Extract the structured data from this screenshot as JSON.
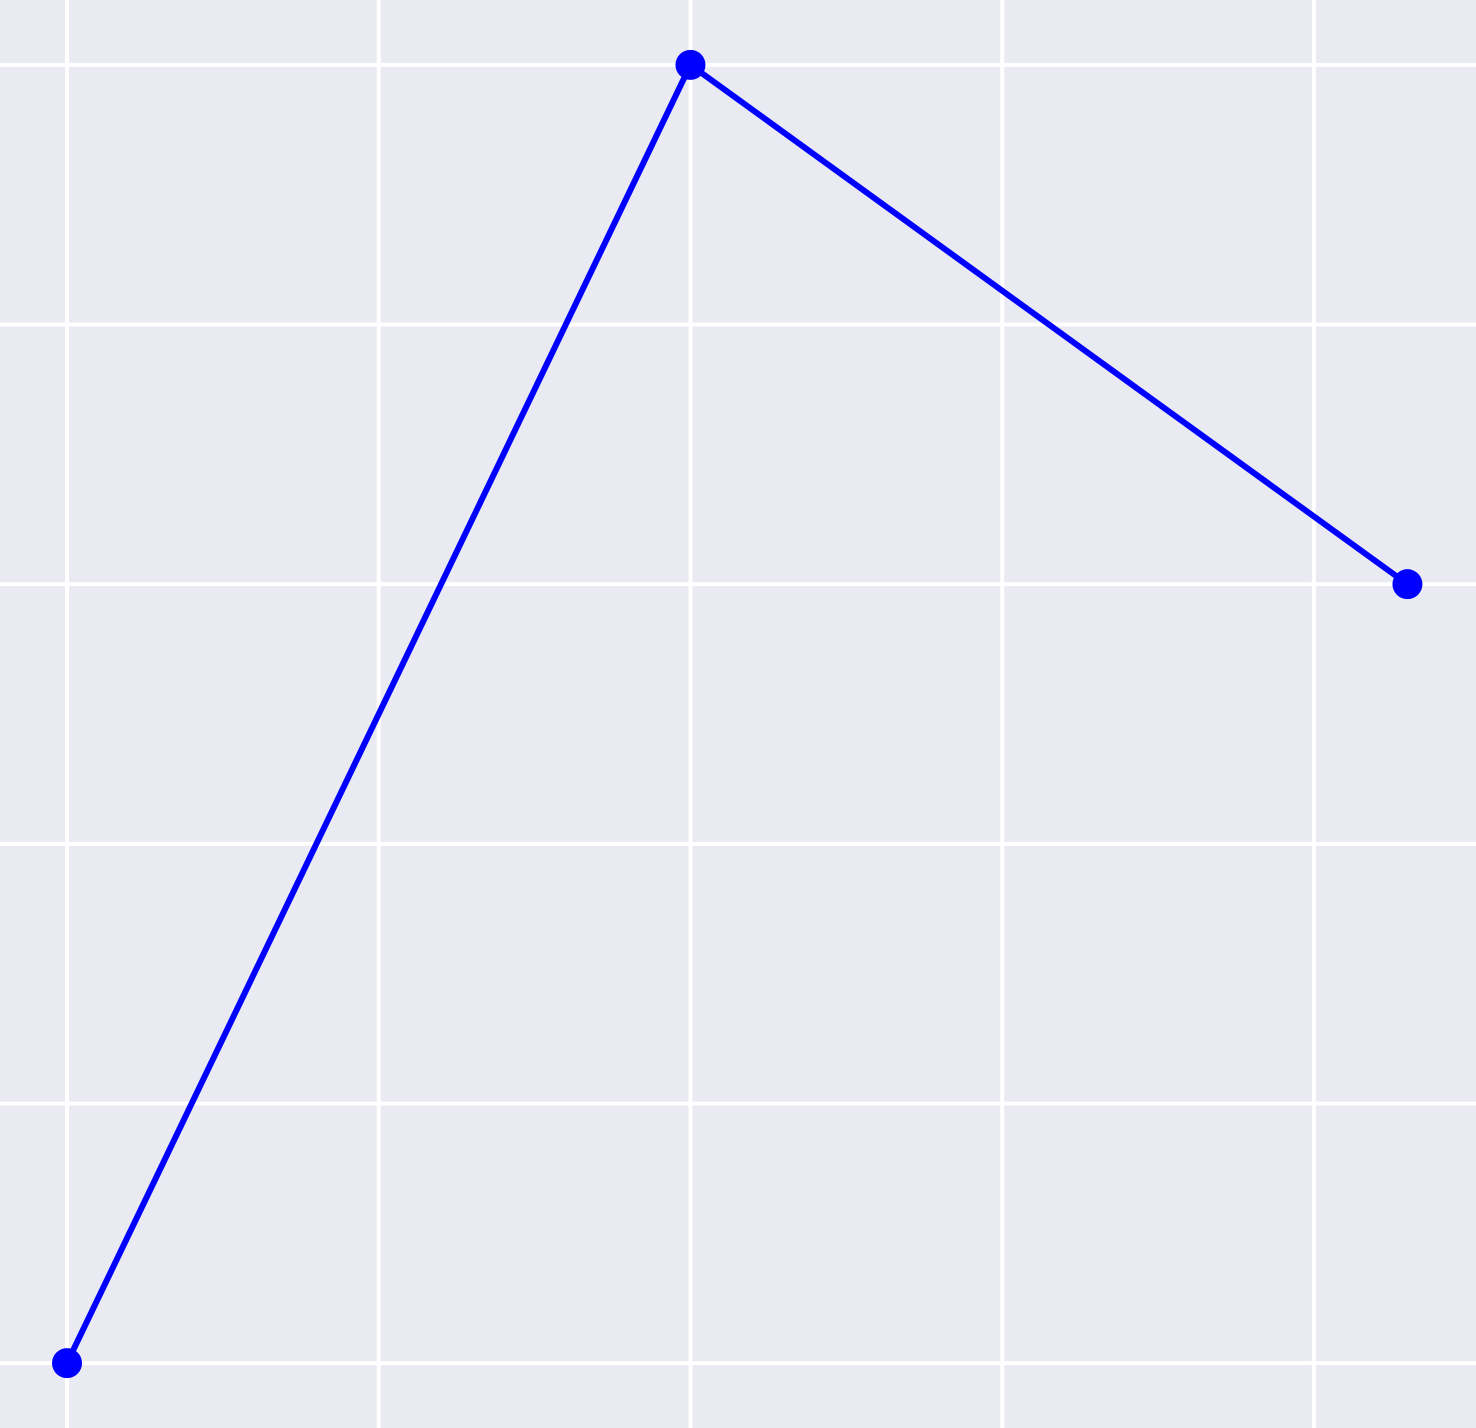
{
  "colors": {
    "background": "#eaeaf2",
    "grid": "#ffffff",
    "series": "#0000ff"
  },
  "chart_data": {
    "type": "line",
    "title": "",
    "xlabel": "",
    "ylabel": "",
    "grid": true,
    "x": [
      0,
      2,
      4.3
    ],
    "series": [
      {
        "values": [
          0,
          5,
          3
        ],
        "color": "#0000ff",
        "marker": "circle"
      }
    ],
    "xticks": [
      0,
      1,
      2,
      3,
      4
    ],
    "yticks": [
      0,
      1,
      2,
      3,
      4,
      5
    ],
    "xlim": [
      -0.215,
      4.52
    ],
    "ylim": [
      -0.25,
      5.25
    ]
  }
}
